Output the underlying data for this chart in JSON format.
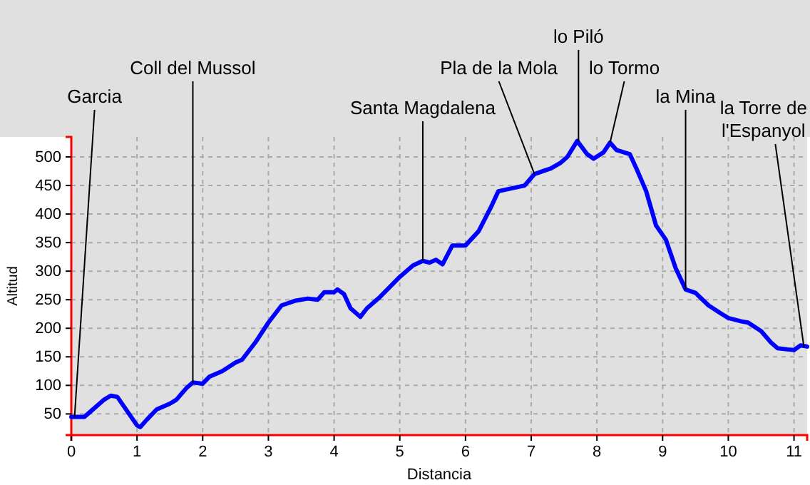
{
  "chart_data": {
    "type": "line",
    "xlabel": "Distancia",
    "ylabel": "Altitud",
    "xlim": [
      0,
      11.2
    ],
    "ylim": [
      13,
      535
    ],
    "xticks": [
      0,
      1,
      2,
      3,
      4,
      5,
      6,
      7,
      8,
      9,
      10,
      11
    ],
    "yticks": [
      50,
      100,
      150,
      200,
      250,
      300,
      350,
      400,
      450,
      500
    ],
    "grid": true,
    "marker": "none",
    "line_style": "solid",
    "series": [
      {
        "color": "#0000ff",
        "x": [
          0,
          0.2,
          0.3,
          0.5,
          0.6,
          0.7,
          0.85,
          1.0,
          1.05,
          1.15,
          1.3,
          1.5,
          1.6,
          1.75,
          1.85,
          2.0,
          2.1,
          2.3,
          2.5,
          2.6,
          2.8,
          3.0,
          3.2,
          3.4,
          3.6,
          3.75,
          3.85,
          4.0,
          4.05,
          4.15,
          4.25,
          4.4,
          4.5,
          4.7,
          5.0,
          5.2,
          5.35,
          5.45,
          5.55,
          5.65,
          5.8,
          6.0,
          6.2,
          6.4,
          6.5,
          6.7,
          6.9,
          7.05,
          7.3,
          7.45,
          7.55,
          7.7,
          7.85,
          7.95,
          8.1,
          8.2,
          8.3,
          8.5,
          8.6,
          8.75,
          8.9,
          9.05,
          9.2,
          9.35,
          9.5,
          9.7,
          9.9,
          10.0,
          10.2,
          10.3,
          10.5,
          10.65,
          10.75,
          10.9,
          11.0,
          11.1,
          11.2
        ],
        "values": [
          45,
          45,
          55,
          75,
          82,
          80,
          55,
          30,
          27,
          40,
          58,
          68,
          75,
          95,
          105,
          103,
          115,
          125,
          140,
          145,
          175,
          210,
          240,
          248,
          252,
          250,
          263,
          263,
          268,
          260,
          235,
          220,
          235,
          255,
          290,
          310,
          318,
          315,
          320,
          312,
          345,
          345,
          370,
          415,
          440,
          445,
          450,
          470,
          480,
          490,
          500,
          528,
          505,
          497,
          508,
          525,
          512,
          505,
          480,
          440,
          380,
          355,
          305,
          268,
          262,
          240,
          225,
          218,
          212,
          210,
          195,
          175,
          165,
          163,
          162,
          170,
          168
        ]
      }
    ],
    "annotations": [
      {
        "text": "Garcia",
        "x": 0.05,
        "y": 45
      },
      {
        "text": "Coll del Mussol",
        "x": 1.85,
        "y": 105
      },
      {
        "text": "Santa Magdalena",
        "x": 5.35,
        "y": 318
      },
      {
        "text": "Pla de la Mola",
        "x": 7.05,
        "y": 470
      },
      {
        "text": "lo Piló",
        "x": 7.72,
        "y": 528
      },
      {
        "text": "lo Tormo",
        "x": 8.2,
        "y": 525
      },
      {
        "text": "la Mina",
        "x": 9.35,
        "y": 268
      },
      {
        "text": "la Torre de l'Espanyol",
        "x": 11.15,
        "y": 168
      }
    ]
  }
}
